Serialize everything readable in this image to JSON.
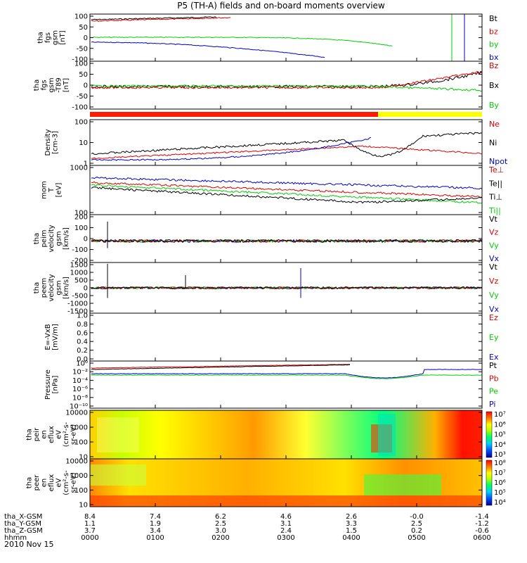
{
  "title": "P5 (TH-A) fields and on-board moments overview",
  "date_label": "2010 Nov 15",
  "colors": {
    "black": "#000000",
    "red": "#e00000",
    "green": "#00d000",
    "blue": "#0000cc",
    "bar_red": "#ff1a00",
    "bar_yellow": "#ffff00"
  },
  "chart_data": {
    "type": "line",
    "x_ticks": [
      "0000",
      "0100",
      "0200",
      "0300",
      "0400",
      "0500",
      "0600"
    ],
    "ephemeris": [
      {
        "label": "tha_X-GSM",
        "values": [
          "8.4",
          "7.4",
          "6.2",
          "4.6",
          "2.6",
          "-0.0",
          "-1.4"
        ]
      },
      {
        "label": "tha_Y-GSM",
        "values": [
          "1.1",
          "1.9",
          "2.5",
          "3.1",
          "3.3",
          "2.5",
          "-1.2"
        ]
      },
      {
        "label": "tha_Z-GSM",
        "values": [
          "3.7",
          "3.4",
          "3.0",
          "2.4",
          "1.5",
          "0.2",
          "-0.6"
        ]
      },
      {
        "label": "hhmm",
        "values": []
      }
    ],
    "panels": [
      {
        "ylabel": [
          "tha",
          "fgs",
          "gsm",
          "[nT]"
        ],
        "yticks": [
          "100",
          "50",
          "0",
          "-50",
          "-100"
        ],
        "legend": [
          {
            "text": "Bt",
            "color": "black"
          },
          {
            "text": "bz",
            "color": "red"
          },
          {
            "text": "by",
            "color": "green"
          },
          {
            "text": "bx",
            "color": "blue"
          }
        ]
      },
      {
        "ylabel": [
          "tha",
          "fgs",
          "gsm",
          "-T89",
          "[nT]"
        ],
        "yticks": [
          "100",
          "50",
          "0",
          "-50",
          "-100"
        ],
        "legend": [
          {
            "text": "Bz",
            "color": "red"
          },
          {
            "text": "Bx",
            "color": "black"
          },
          {
            "text": "By",
            "color": "green"
          }
        ]
      },
      {
        "ylabel": [
          "Density",
          "[cm-3]"
        ],
        "yticks": [
          "100",
          "10",
          "1"
        ],
        "legend": [
          {
            "text": "Ne",
            "color": "red"
          },
          {
            "text": "Ni",
            "color": "black"
          },
          {
            "text": "Npot",
            "color": "blue"
          }
        ]
      },
      {
        "ylabel": [
          "mom",
          "T",
          "[eV]"
        ],
        "yticks": [
          "1000",
          "100"
        ],
        "legend": [
          {
            "text": "Te⊥",
            "color": "red"
          },
          {
            "text": "Te||",
            "color": "black"
          },
          {
            "text": "Ti⊥",
            "color": "black"
          },
          {
            "text": "Ti||",
            "color": "green"
          }
        ]
      },
      {
        "ylabel": [
          "tha",
          "peim",
          "velocity",
          "gsm",
          "[km/s]"
        ],
        "yticks": [
          "200",
          "100",
          "0",
          "-100",
          "-200"
        ],
        "legend": [
          {
            "text": "Vt",
            "color": "black"
          },
          {
            "text": "Vz",
            "color": "red"
          },
          {
            "text": "Vy",
            "color": "green"
          },
          {
            "text": "Vx",
            "color": "blue"
          }
        ]
      },
      {
        "ylabel": [
          "tha",
          "peem",
          "velocity",
          "gsm",
          "[km/s]"
        ],
        "yticks": [
          "1500",
          "1000",
          "500",
          "0",
          "-500",
          "-1000",
          "-1500"
        ],
        "legend": [
          {
            "text": "Vt",
            "color": "black"
          },
          {
            "text": "Vz",
            "color": "red"
          },
          {
            "text": "Vy",
            "color": "green"
          },
          {
            "text": "Vx",
            "color": "blue"
          }
        ]
      },
      {
        "ylabel": [
          "E=-VxB",
          "[mV/m]"
        ],
        "yticks": [
          "1.0",
          "0.8",
          "0.6",
          "0.4",
          "0.2",
          "0.0"
        ],
        "legend": [
          {
            "text": "Ez",
            "color": "red"
          },
          {
            "text": "Ey",
            "color": "green"
          },
          {
            "text": "Ex",
            "color": "blue"
          }
        ]
      },
      {
        "ylabel": [
          "Pressure",
          "[nPa]"
        ],
        "yticks": [
          "10⁰",
          "10⁻²",
          "10⁻⁴",
          "10⁻⁶",
          "10⁻⁸",
          "10⁻¹⁰"
        ],
        "legend": [
          {
            "text": "Pt",
            "color": "black"
          },
          {
            "text": "Pb",
            "color": "red"
          },
          {
            "text": "Pe",
            "color": "green"
          },
          {
            "text": "Pi",
            "color": "blue"
          }
        ]
      },
      {
        "ylabel": [
          "tha",
          "peir",
          "en",
          "eflux",
          "eV",
          "(cm²-s-",
          "sr-eV)"
        ],
        "yticks": [
          "10000",
          "1000",
          "100",
          "10"
        ],
        "colorbar": [
          "10⁷",
          "10⁶",
          "10⁵",
          "10⁴",
          "10³"
        ]
      },
      {
        "ylabel": [
          "tha",
          "peer",
          "en",
          "eflux",
          "eV",
          "(cm²-s-",
          "sr-eV)"
        ],
        "yticks": [
          "10000",
          "1000",
          "100",
          "10"
        ],
        "colorbar": [
          "10⁸",
          "10⁷",
          "10⁶",
          "10⁵",
          "10⁴"
        ]
      }
    ],
    "grid": false
  }
}
